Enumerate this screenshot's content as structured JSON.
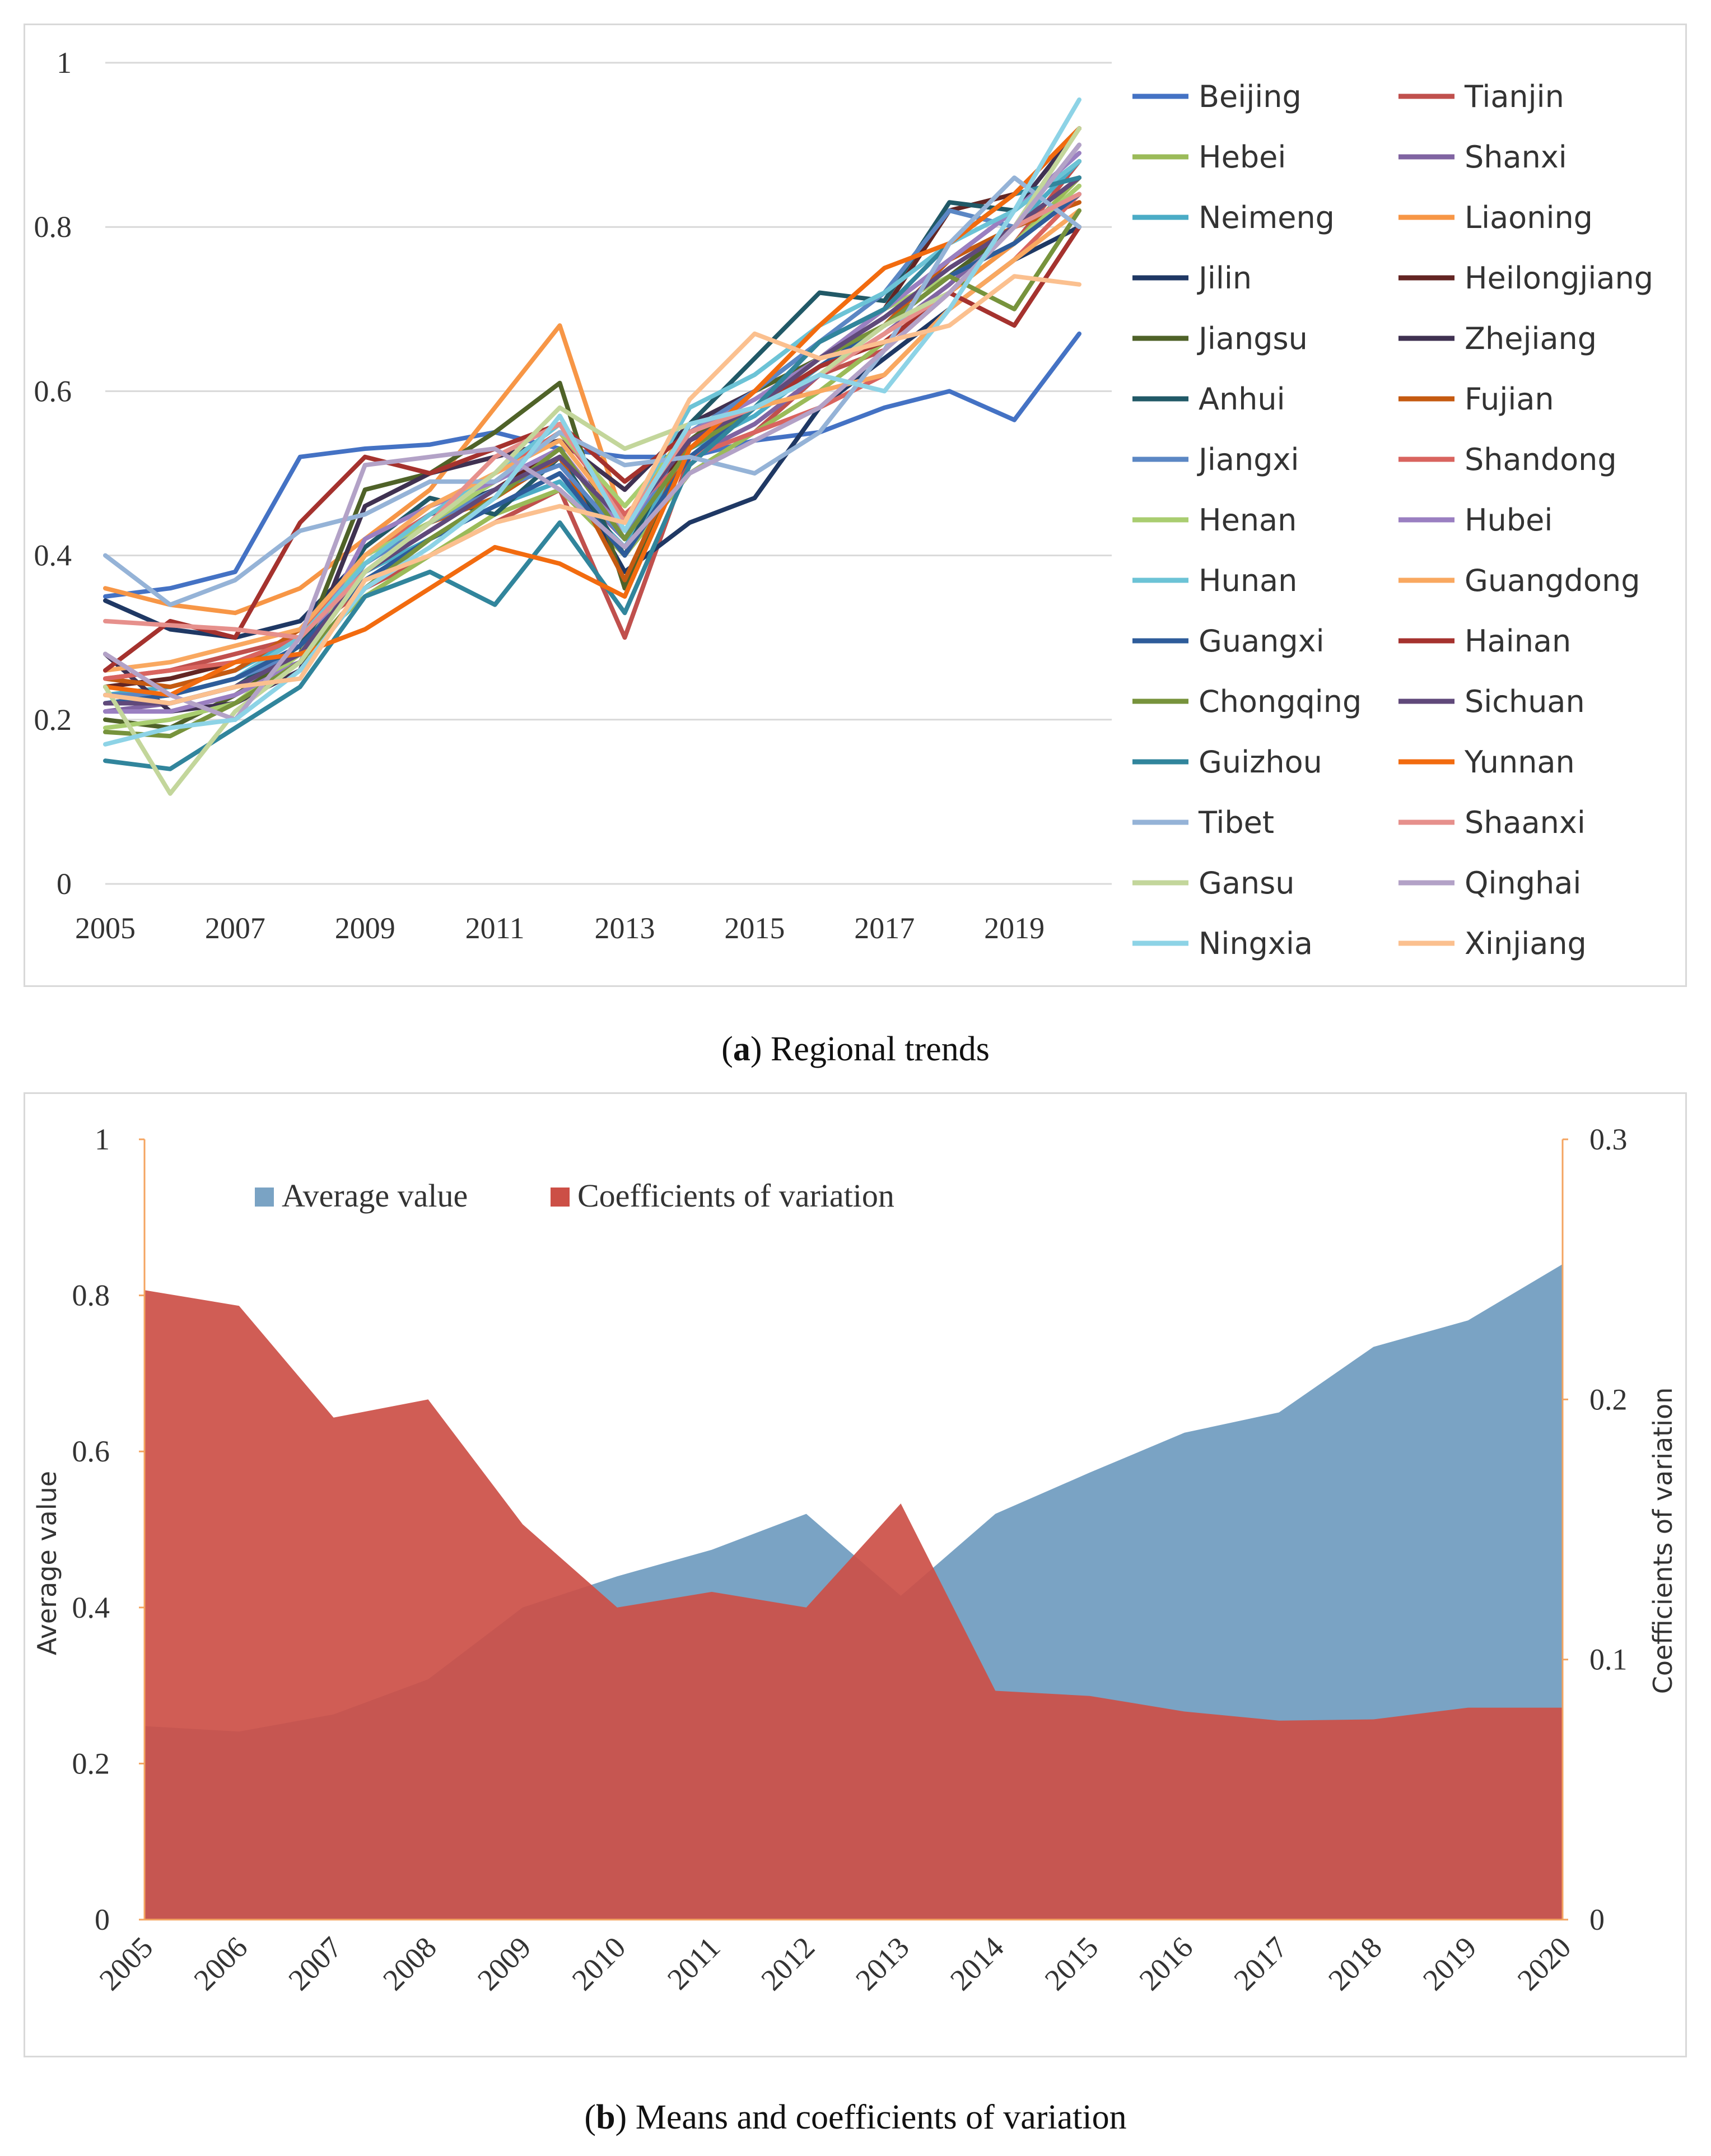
{
  "captions": {
    "a_label": "a",
    "a_text": "Regional trends",
    "b_label": "b",
    "b_text": "Means and coefficients of variation"
  },
  "chart_data": [
    {
      "type": "line",
      "title": "Regional trends",
      "x": [
        2005,
        2006,
        2007,
        2008,
        2009,
        2010,
        2011,
        2012,
        2013,
        2014,
        2015,
        2016,
        2017,
        2018,
        2019,
        2020
      ],
      "x_tick_labels": [
        "2005",
        "2007",
        "2009",
        "2011",
        "2013",
        "2015",
        "2017",
        "2019"
      ],
      "y_tick_labels": [
        "0",
        "0.2",
        "0.4",
        "0.6",
        "0.8",
        "1"
      ],
      "ylim": [
        0,
        1
      ],
      "legend_position": "right",
      "series": [
        {
          "name": "Beijing",
          "color": "#4472C4",
          "values": [
            0.35,
            0.36,
            0.38,
            0.52,
            0.53,
            0.535,
            0.55,
            0.53,
            0.52,
            0.52,
            0.54,
            0.55,
            0.58,
            0.6,
            0.565,
            0.67
          ]
        },
        {
          "name": "Tianjin",
          "color": "#C0504D",
          "values": [
            0.25,
            0.26,
            0.28,
            0.3,
            0.36,
            0.4,
            0.44,
            0.48,
            0.3,
            0.52,
            0.55,
            0.62,
            0.65,
            0.72,
            0.78,
            0.88
          ]
        },
        {
          "name": "Hebei",
          "color": "#9BBB59",
          "values": [
            0.22,
            0.23,
            0.25,
            0.28,
            0.35,
            0.4,
            0.45,
            0.48,
            0.4,
            0.5,
            0.55,
            0.6,
            0.66,
            0.72,
            0.78,
            0.86
          ]
        },
        {
          "name": "Shanxi",
          "color": "#8064A2",
          "values": [
            0.21,
            0.22,
            0.24,
            0.27,
            0.36,
            0.42,
            0.46,
            0.5,
            0.42,
            0.52,
            0.56,
            0.62,
            0.67,
            0.73,
            0.8,
            0.9
          ]
        },
        {
          "name": "Neimeng",
          "color": "#4BACC6",
          "values": [
            0.23,
            0.24,
            0.26,
            0.3,
            0.38,
            0.42,
            0.46,
            0.49,
            0.41,
            0.53,
            0.57,
            0.63,
            0.68,
            0.74,
            0.8,
            0.88
          ]
        },
        {
          "name": "Liaoning",
          "color": "#F79646",
          "values": [
            0.36,
            0.34,
            0.33,
            0.36,
            0.42,
            0.48,
            0.58,
            0.68,
            0.44,
            0.56,
            0.6,
            0.64,
            0.66,
            0.72,
            0.78,
            0.85
          ]
        },
        {
          "name": "Jilin",
          "color": "#1F3864",
          "values": [
            0.345,
            0.31,
            0.3,
            0.32,
            0.4,
            0.45,
            0.48,
            0.52,
            0.38,
            0.44,
            0.47,
            0.58,
            0.64,
            0.7,
            0.76,
            0.8
          ]
        },
        {
          "name": "Heilongjiang",
          "color": "#632523",
          "values": [
            0.24,
            0.25,
            0.27,
            0.3,
            0.38,
            0.44,
            0.48,
            0.53,
            0.42,
            0.54,
            0.58,
            0.64,
            0.7,
            0.82,
            0.84,
            0.92
          ]
        },
        {
          "name": "Jiangsu",
          "color": "#4F6228",
          "values": [
            0.2,
            0.19,
            0.23,
            0.28,
            0.48,
            0.5,
            0.55,
            0.61,
            0.36,
            0.54,
            0.6,
            0.64,
            0.68,
            0.74,
            0.8,
            0.86
          ]
        },
        {
          "name": "Zhejiang",
          "color": "#3F3151",
          "values": [
            0.28,
            0.21,
            0.22,
            0.26,
            0.46,
            0.5,
            0.52,
            0.54,
            0.48,
            0.56,
            0.6,
            0.66,
            0.7,
            0.76,
            0.82,
            0.92
          ]
        },
        {
          "name": "Anhui",
          "color": "#215967",
          "values": [
            0.22,
            0.22,
            0.24,
            0.29,
            0.41,
            0.47,
            0.45,
            0.52,
            0.4,
            0.56,
            0.64,
            0.72,
            0.71,
            0.83,
            0.82,
            0.88
          ]
        },
        {
          "name": "Fujian",
          "color": "#C55A11",
          "values": [
            0.25,
            0.24,
            0.26,
            0.31,
            0.39,
            0.44,
            0.47,
            0.52,
            0.37,
            0.54,
            0.58,
            0.64,
            0.68,
            0.76,
            0.8,
            0.83
          ]
        },
        {
          "name": "Jiangxi",
          "color": "#5B87C4",
          "values": [
            0.23,
            0.23,
            0.25,
            0.28,
            0.39,
            0.44,
            0.48,
            0.51,
            0.42,
            0.55,
            0.6,
            0.66,
            0.72,
            0.82,
            0.8,
            0.84
          ]
        },
        {
          "name": "Shandong",
          "color": "#D9645F",
          "values": [
            0.25,
            0.26,
            0.27,
            0.3,
            0.4,
            0.45,
            0.5,
            0.55,
            0.45,
            0.52,
            0.55,
            0.58,
            0.62,
            0.7,
            0.76,
            0.84
          ]
        },
        {
          "name": "Henan",
          "color": "#A9CD70",
          "values": [
            0.19,
            0.2,
            0.22,
            0.28,
            0.4,
            0.44,
            0.49,
            0.55,
            0.46,
            0.55,
            0.58,
            0.64,
            0.7,
            0.74,
            0.78,
            0.85
          ]
        },
        {
          "name": "Hubei",
          "color": "#9A7FC1",
          "values": [
            0.21,
            0.21,
            0.23,
            0.27,
            0.42,
            0.46,
            0.49,
            0.53,
            0.43,
            0.55,
            0.59,
            0.64,
            0.7,
            0.76,
            0.82,
            0.89
          ]
        },
        {
          "name": "Hunan",
          "color": "#6CC3D6",
          "values": [
            0.22,
            0.23,
            0.25,
            0.3,
            0.39,
            0.45,
            0.5,
            0.56,
            0.44,
            0.58,
            0.62,
            0.68,
            0.72,
            0.78,
            0.82,
            0.88
          ]
        },
        {
          "name": "Guangdong",
          "color": "#F9A860",
          "values": [
            0.26,
            0.27,
            0.29,
            0.31,
            0.4,
            0.46,
            0.5,
            0.54,
            0.44,
            0.55,
            0.58,
            0.6,
            0.62,
            0.7,
            0.76,
            0.82
          ]
        },
        {
          "name": "Guangxi",
          "color": "#2E5C9A",
          "values": [
            0.22,
            0.23,
            0.25,
            0.29,
            0.37,
            0.42,
            0.46,
            0.5,
            0.4,
            0.52,
            0.58,
            0.63,
            0.68,
            0.74,
            0.78,
            0.84
          ]
        },
        {
          "name": "Hainan",
          "color": "#A5322E",
          "values": [
            0.26,
            0.32,
            0.3,
            0.44,
            0.52,
            0.5,
            0.53,
            0.56,
            0.49,
            0.55,
            0.58,
            0.63,
            0.66,
            0.72,
            0.68,
            0.8
          ]
        },
        {
          "name": "Chongqing",
          "color": "#77933C",
          "values": [
            0.185,
            0.18,
            0.22,
            0.27,
            0.36,
            0.42,
            0.47,
            0.53,
            0.42,
            0.53,
            0.58,
            0.64,
            0.68,
            0.74,
            0.7,
            0.82
          ]
        },
        {
          "name": "Sichuan",
          "color": "#60497A",
          "values": [
            0.22,
            0.22,
            0.24,
            0.28,
            0.38,
            0.43,
            0.48,
            0.52,
            0.44,
            0.54,
            0.58,
            0.64,
            0.69,
            0.75,
            0.8,
            0.86
          ]
        },
        {
          "name": "Guizhou",
          "color": "#31859C",
          "values": [
            0.15,
            0.14,
            0.19,
            0.24,
            0.35,
            0.38,
            0.34,
            0.44,
            0.33,
            0.51,
            0.58,
            0.66,
            0.7,
            0.78,
            0.84,
            0.86
          ]
        },
        {
          "name": "Yunnan",
          "color": "#F26B0F",
          "values": [
            0.24,
            0.23,
            0.27,
            0.28,
            0.31,
            0.36,
            0.41,
            0.39,
            0.35,
            0.53,
            0.6,
            0.68,
            0.75,
            0.78,
            0.84,
            0.92
          ]
        },
        {
          "name": "Tibet",
          "color": "#95B3D7",
          "values": [
            0.4,
            0.34,
            0.37,
            0.43,
            0.45,
            0.49,
            0.49,
            0.55,
            0.51,
            0.52,
            0.5,
            0.55,
            0.65,
            0.78,
            0.86,
            0.8
          ]
        },
        {
          "name": "Shaanxi",
          "color": "#E6908C",
          "values": [
            0.32,
            0.315,
            0.31,
            0.3,
            0.38,
            0.44,
            0.52,
            0.56,
            0.44,
            0.55,
            0.58,
            0.62,
            0.67,
            0.72,
            0.8,
            0.84
          ]
        },
        {
          "name": "Gansu",
          "color": "#C3D69B",
          "values": [
            0.24,
            0.11,
            0.21,
            0.27,
            0.38,
            0.44,
            0.5,
            0.58,
            0.53,
            0.56,
            0.58,
            0.62,
            0.68,
            0.72,
            0.8,
            0.92
          ]
        },
        {
          "name": "Qinghai",
          "color": "#B3A2C7",
          "values": [
            0.28,
            0.23,
            0.2,
            0.3,
            0.51,
            0.52,
            0.53,
            0.48,
            0.41,
            0.5,
            0.54,
            0.58,
            0.65,
            0.72,
            0.8,
            0.9
          ]
        },
        {
          "name": "Ningxia",
          "color": "#8DD3E6",
          "values": [
            0.17,
            0.19,
            0.2,
            0.26,
            0.36,
            0.41,
            0.47,
            0.57,
            0.43,
            0.56,
            0.58,
            0.62,
            0.6,
            0.7,
            0.82,
            0.955
          ]
        },
        {
          "name": "Xinjiang",
          "color": "#FBC08F",
          "values": [
            0.23,
            0.22,
            0.24,
            0.25,
            0.37,
            0.4,
            0.44,
            0.46,
            0.44,
            0.59,
            0.67,
            0.64,
            0.66,
            0.68,
            0.74,
            0.73
          ]
        }
      ]
    },
    {
      "type": "area",
      "title": "Means and coefficients of variation",
      "categories": [
        "2005",
        "2006",
        "2007",
        "2008",
        "2009",
        "2010",
        "2011",
        "2012",
        "2013",
        "2014",
        "2015",
        "2016",
        "2017",
        "2018",
        "2019",
        "2020"
      ],
      "ylabel": "Average value",
      "y2label": "Coefficients of variation",
      "ylim": [
        0,
        1
      ],
      "y2lim": [
        0,
        0.3
      ],
      "y_tick_labels": [
        "0",
        "0.2",
        "0.4",
        "0.6",
        "0.8",
        "1"
      ],
      "y2_tick_labels": [
        "0",
        "0.1",
        "0.2",
        "0.3"
      ],
      "legend_position": "top-left",
      "series": [
        {
          "name": "Average value",
          "axis": "left",
          "color": "#7AA3C4",
          "values": [
            0.248,
            0.241,
            0.263,
            0.308,
            0.4,
            0.44,
            0.474,
            0.52,
            0.415,
            0.52,
            0.573,
            0.624,
            0.65,
            0.734,
            0.768,
            0.84
          ]
        },
        {
          "name": "Coefficients of variation",
          "axis": "right",
          "color": "#CC4F46",
          "values": [
            0.242,
            0.236,
            0.193,
            0.2,
            0.152,
            0.12,
            0.126,
            0.12,
            0.16,
            0.088,
            0.086,
            0.08,
            0.0765,
            0.077,
            0.0815,
            0.0815
          ]
        }
      ]
    }
  ]
}
